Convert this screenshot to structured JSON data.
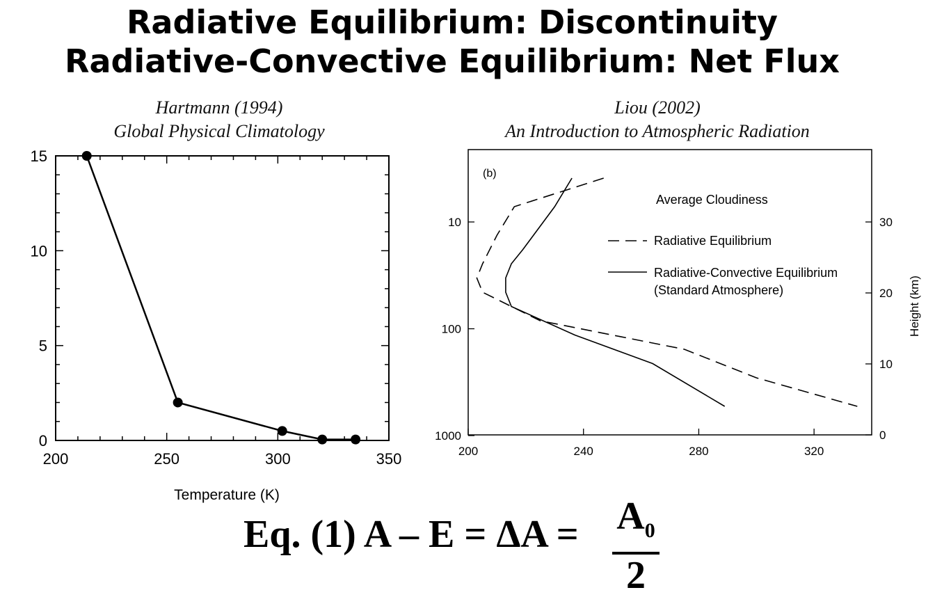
{
  "title_line1": "Radiative Equilibrium: Discontinuity",
  "title_line2": "Radiative-Convective Equilibrium: Net Flux",
  "left_citation": {
    "author": "Hartmann (1994)",
    "book": "Global Physical Climatology"
  },
  "right_citation": {
    "author": "Liou (2002)",
    "book": "An Introduction to Atmospheric Radiation"
  },
  "equation": {
    "main": "Eq. (1)  A – E = ΔA = ",
    "numerator": "A",
    "numerator_sub": "0",
    "denominator": "2"
  },
  "chart_data": [
    {
      "type": "line",
      "title": "",
      "xlabel": "Temperature (K)",
      "ylabel": "",
      "xlim": [
        200,
        350
      ],
      "ylim": [
        0,
        15
      ],
      "xticks": [
        "200",
        "250",
        "300",
        "350"
      ],
      "yticks": [
        "0",
        "5",
        "10",
        "15"
      ],
      "series": [
        {
          "x": [
            214,
            255,
            302,
            320,
            335
          ],
          "y": [
            15,
            2,
            0.5,
            0.05,
            0.05
          ]
        }
      ]
    },
    {
      "type": "line",
      "panel_label": "(b)",
      "legend_title": "Average Cloudiness",
      "xlim": [
        200,
        340
      ],
      "xticks": [
        "200",
        "240",
        "280",
        "320"
      ],
      "y_left_scale": "log",
      "y_left_ticks": [
        "10",
        "100",
        "1000"
      ],
      "y_right_label": "Height (km)",
      "y_right_ticks": [
        "0",
        "10",
        "20",
        "30"
      ],
      "series": [
        {
          "name": "Radiative Equilibrium",
          "style": "dashed",
          "points": [
            [
              247,
              2
            ],
            [
              216,
              4
            ],
            [
              210,
              6
            ],
            [
              205,
              8
            ],
            [
              203,
              9
            ],
            [
              205,
              10
            ],
            [
              225,
              12
            ],
            [
              275,
              14
            ],
            [
              300,
              16
            ],
            [
              335,
              18
            ]
          ]
        },
        {
          "name": "Radiative-Convective Equilibrium",
          "name_line2": "(Standard Atmosphere)",
          "style": "solid",
          "points": [
            [
              236,
              2
            ],
            [
              230,
              4
            ],
            [
              219,
              7
            ],
            [
              215,
              8
            ],
            [
              213,
              9
            ],
            [
              213,
              10
            ],
            [
              215,
              11
            ],
            [
              237,
              13
            ],
            [
              264,
              15
            ],
            [
              289,
              18
            ]
          ]
        }
      ]
    }
  ]
}
